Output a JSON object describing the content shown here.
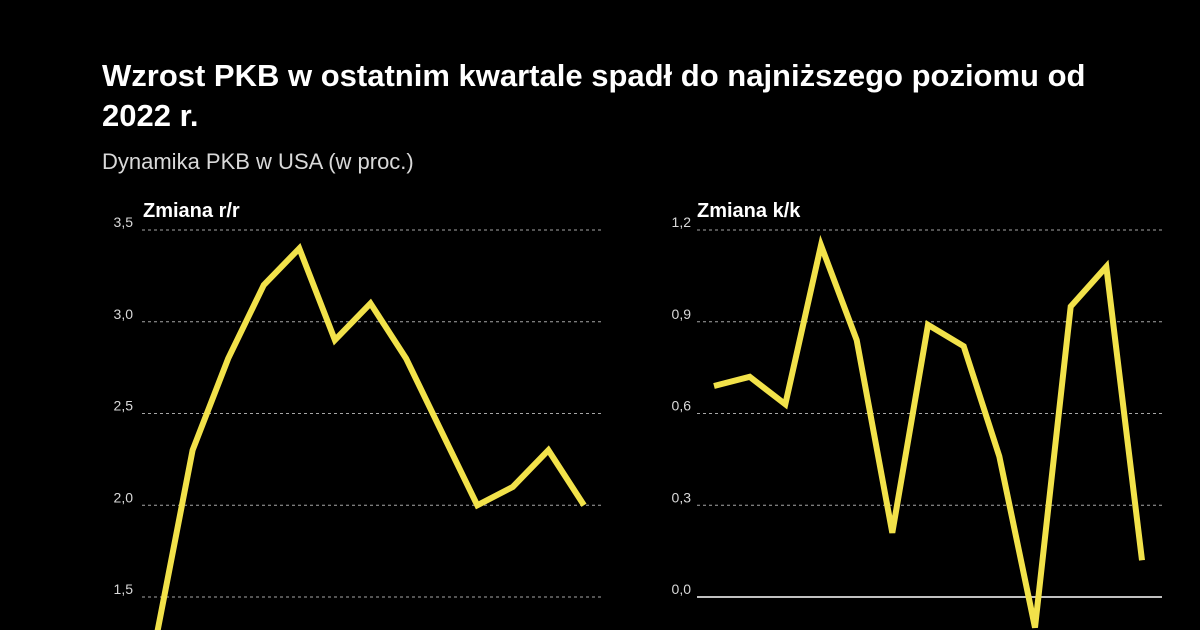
{
  "header": {
    "title": "Wzrost PKB w ostatnim kwartale spadł do najniższego poziomu od 2022 r.",
    "subtitle": "Dynamika PKB w USA (w proc.)"
  },
  "colors": {
    "line": "#f2e24a",
    "background": "#000000",
    "text": "#ffffff"
  },
  "chart_data": [
    {
      "type": "line",
      "title": "Zmiana r/r",
      "ylim": [
        1.5,
        3.5
      ],
      "yticks": [
        1.5,
        2.0,
        2.5,
        3.0,
        3.5
      ],
      "ytick_labels": [
        "1,5",
        "2,0",
        "2,5",
        "3,0",
        "3,5"
      ],
      "grid": true,
      "values": [
        1.3,
        2.3,
        2.8,
        3.2,
        3.4,
        2.9,
        3.1,
        2.8,
        2.4,
        2.0,
        2.1,
        2.3,
        2.0
      ]
    },
    {
      "type": "line",
      "title": "Zmiana k/k",
      "ylim": [
        0.0,
        1.2
      ],
      "yticks": [
        0.0,
        0.3,
        0.6,
        0.9,
        1.2
      ],
      "ytick_labels": [
        "0,0",
        "0,3",
        "0,6",
        "0,9",
        "1,2"
      ],
      "grid": true,
      "values": [
        0.69,
        0.72,
        0.63,
        1.15,
        0.84,
        0.21,
        0.89,
        0.82,
        0.46,
        -0.1,
        0.95,
        1.08,
        0.12
      ]
    }
  ]
}
